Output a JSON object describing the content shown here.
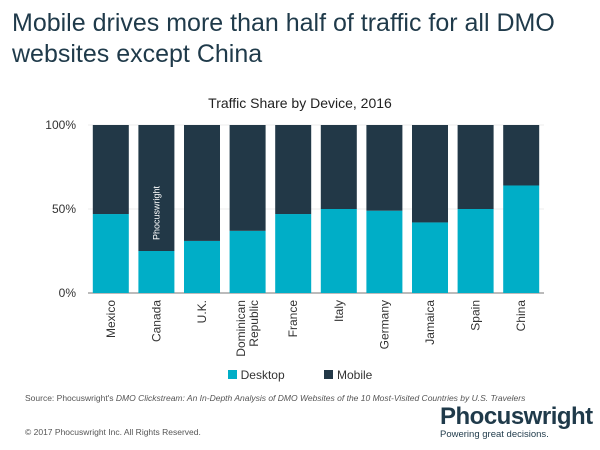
{
  "title": "Mobile drives more than half of traffic for all DMO websites except China",
  "chart_data": {
    "type": "bar",
    "stacked": true,
    "title": "Traffic Share by Device, 2016",
    "categories": [
      "Mexico",
      "Canada",
      "U.K.",
      "Dominican Republic",
      "France",
      "Italy",
      "Germany",
      "Jamaica",
      "Spain",
      "China"
    ],
    "series": [
      {
        "name": "Desktop",
        "color": "#00aec7",
        "values": [
          47,
          25,
          31,
          37,
          47,
          50,
          49,
          42,
          50,
          64
        ]
      },
      {
        "name": "Mobile",
        "color": "#223847",
        "values": [
          53,
          75,
          69,
          63,
          53,
          50,
          51,
          58,
          50,
          36
        ]
      }
    ],
    "ylim": [
      0,
      100
    ],
    "yticks": [
      "0%",
      "50%",
      "100%"
    ],
    "grid": true,
    "legend": "bottom"
  },
  "watermark": "Phocuswright",
  "source": {
    "prefix": "Source: Phocuswright's ",
    "italic": "DMO Clickstream: An In-Depth Analysis of DMO Websites of the 10 Most-Visited Countries by U.S. Travelers"
  },
  "copyright": "© 2017 Phocuswright Inc. All Rights Reserved.",
  "logo": {
    "name": "Phocuswright",
    "tagline": "Powering great decisions."
  }
}
